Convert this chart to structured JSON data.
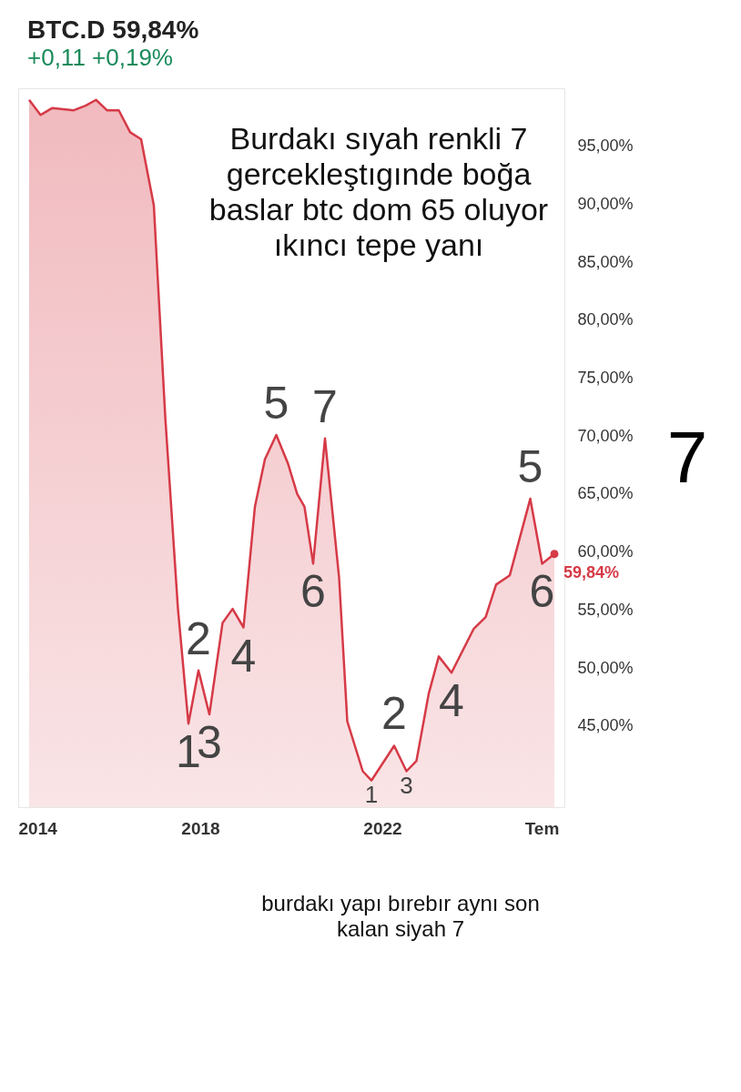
{
  "chart_data": {
    "type": "area",
    "title": "BTC.D 59,84%",
    "subtitle": "+0,11 +0,19%",
    "x": [
      2014.24,
      2014.49,
      2014.75,
      2015.22,
      2015.48,
      2015.71,
      2015.95,
      2016.21,
      2016.46,
      2016.7,
      2016.98,
      2017.07,
      2017.23,
      2017.51,
      2017.74,
      2017.96,
      2018.2,
      2018.49,
      2018.71,
      2018.95,
      2019.2,
      2019.42,
      2019.67,
      2019.93,
      2020.13,
      2020.29,
      2020.48,
      2020.74,
      2021.05,
      2021.23,
      2021.57,
      2021.76,
      2022.26,
      2022.53,
      2022.75,
      2023.02,
      2023.24,
      2023.52,
      2024.01,
      2024.27,
      2024.5,
      2024.8,
      2025.25,
      2025.51,
      2025.78
    ],
    "series": [
      {
        "color": "#d63a47",
        "values": [
          99.0,
          97.7,
          98.3,
          98.1,
          98.5,
          99.0,
          98.1,
          98.1,
          96.2,
          95.6,
          89.9,
          83.3,
          71.7,
          55.1,
          45.2,
          49.8,
          46.0,
          53.9,
          55.1,
          53.5,
          63.9,
          68.0,
          70.1,
          67.6,
          65.0,
          63.9,
          59.0,
          69.8,
          57.8,
          45.4,
          41.1,
          40.3,
          43.3,
          41.1,
          42.0,
          47.8,
          51.0,
          49.6,
          53.4,
          54.4,
          57.2,
          58.0,
          64.6,
          59.0,
          59.84
        ]
      }
    ],
    "xlim": [
      2014,
      2026
    ],
    "ylim": [
      38,
      100
    ],
    "xticks": [
      2014,
      2018,
      2022,
      {
        "value": 2025.5,
        "label": "Tem"
      }
    ],
    "yticks": [
      {
        "value": 45,
        "label": "45,00%"
      },
      {
        "value": 50,
        "label": "50,00%"
      },
      {
        "value": 55,
        "label": "55,00%"
      },
      {
        "value": 60,
        "label": "60,00%"
      },
      {
        "value": 65,
        "label": "65,00%"
      },
      {
        "value": 70,
        "label": "70,00%"
      },
      {
        "value": 75,
        "label": "75,00%"
      },
      {
        "value": 80,
        "label": "80,00%"
      },
      {
        "value": 85,
        "label": "85,00%"
      },
      {
        "value": 90,
        "label": "90,00%"
      },
      {
        "value": 95,
        "label": "95,00%"
      }
    ],
    "grid": false,
    "annotations": [
      "Burdakı  sıyah renkli 7 gercekleştıgınde boğa baslar btc dom 65 oluyor ıkıncı tepe yanı",
      "7",
      "burdakı yapı bırebır aynı son kalan siyah 7",
      {
        "text": "59,84%",
        "x": 2025.78,
        "y": 59.84
      },
      {
        "text": "1",
        "x": 2017.74,
        "y": 45.2
      },
      {
        "text": "2",
        "x": 2017.96,
        "y": 49.8
      },
      {
        "text": "3",
        "x": 2018.2,
        "y": 46.0
      },
      {
        "text": "4",
        "x": 2018.95,
        "y": 53.5
      },
      {
        "text": "5",
        "x": 2019.67,
        "y": 70.1
      },
      {
        "text": "6",
        "x": 2020.48,
        "y": 59.0
      },
      {
        "text": "7",
        "x": 2020.74,
        "y": 69.8
      },
      {
        "text": "1",
        "x": 2021.76,
        "y": 40.3
      },
      {
        "text": "2",
        "x": 2022.26,
        "y": 43.3
      },
      {
        "text": "3",
        "x": 2022.53,
        "y": 41.1
      },
      {
        "text": "4",
        "x": 2023.52,
        "y": 49.6
      },
      {
        "text": "5",
        "x": 2025.25,
        "y": 64.6
      },
      {
        "text": "6",
        "x": 2025.51,
        "y": 59.0
      }
    ]
  }
}
